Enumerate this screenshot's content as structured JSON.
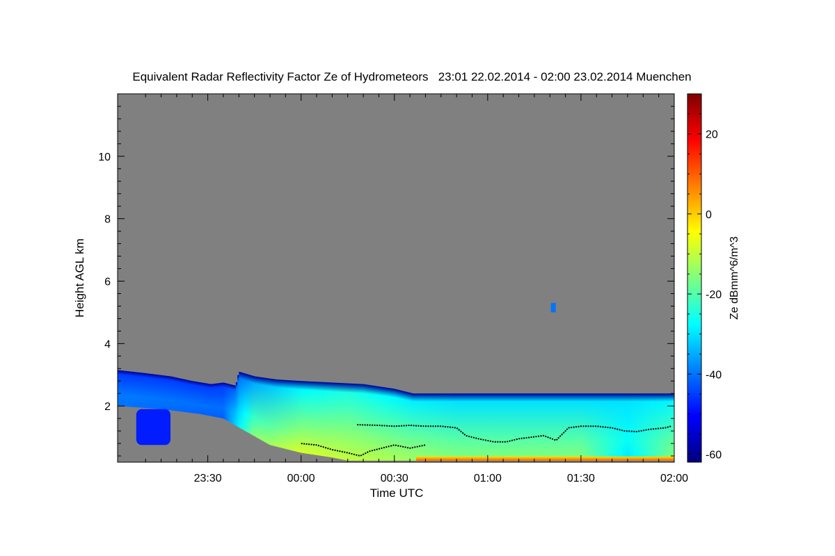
{
  "chart_data": {
    "type": "heatmap",
    "title": "Equivalent Radar Reflectivity Factor Ze of Hydrometeors   23:01 22.02.2014 - 02:00 23.02.2014 Muenchen",
    "xlabel": "Time UTC",
    "ylabel": "Height AGL km",
    "xlim_minutes": [
      -59,
      120
    ],
    "ylim_km": [
      0.2,
      12
    ],
    "x_ticks": [
      {
        "minutes": -30,
        "label": "23:30"
      },
      {
        "minutes": 0,
        "label": "00:00"
      },
      {
        "minutes": 30,
        "label": "00:30"
      },
      {
        "minutes": 60,
        "label": "01:00"
      },
      {
        "minutes": 90,
        "label": "01:30"
      },
      {
        "minutes": 120,
        "label": "02:00"
      }
    ],
    "y_ticks": [
      {
        "value": 2,
        "label": "2"
      },
      {
        "value": 4,
        "label": "4"
      },
      {
        "value": 6,
        "label": "6"
      },
      {
        "value": 8,
        "label": "8"
      },
      {
        "value": 10,
        "label": "10"
      }
    ],
    "colorbar": {
      "label": "Ze dBmm^6/m^3",
      "range": [
        -62,
        30
      ],
      "ticks": [
        {
          "value": 20,
          "label": "20"
        },
        {
          "value": 0,
          "label": "0"
        },
        {
          "value": -20,
          "label": "-20"
        },
        {
          "value": -40,
          "label": "-40"
        },
        {
          "value": -60,
          "label": "-60"
        }
      ],
      "colormap": [
        "#00007f",
        "#0000ff",
        "#007fff",
        "#00ffff",
        "#7fff7f",
        "#ffff00",
        "#ff7f00",
        "#ff0000",
        "#7f0000"
      ]
    },
    "cloud_top_km": [
      {
        "t": -59,
        "h": 3.15
      },
      {
        "t": -50,
        "h": 3.05
      },
      {
        "t": -42,
        "h": 2.95
      },
      {
        "t": -35,
        "h": 2.8
      },
      {
        "t": -29,
        "h": 2.7
      },
      {
        "t": -25,
        "h": 2.75
      },
      {
        "t": -21,
        "h": 2.65
      },
      {
        "t": -20,
        "h": 3.1
      },
      {
        "t": -15,
        "h": 2.95
      },
      {
        "t": -8,
        "h": 2.85
      },
      {
        "t": 0,
        "h": 2.8
      },
      {
        "t": 10,
        "h": 2.75
      },
      {
        "t": 20,
        "h": 2.7
      },
      {
        "t": 30,
        "h": 2.55
      },
      {
        "t": 36,
        "h": 2.4
      },
      {
        "t": 45,
        "h": 2.4
      },
      {
        "t": 60,
        "h": 2.4
      },
      {
        "t": 90,
        "h": 2.4
      },
      {
        "t": 120,
        "h": 2.4
      }
    ],
    "cloud_base_km": [
      {
        "t": -59,
        "h": 2.0
      },
      {
        "t": -45,
        "h": 1.9
      },
      {
        "t": -33,
        "h": 1.75
      },
      {
        "t": -25,
        "h": 1.6
      },
      {
        "t": -18,
        "h": 1.2
      },
      {
        "t": -10,
        "h": 0.75
      },
      {
        "t": 0,
        "h": 0.5
      },
      {
        "t": 10,
        "h": 0.35
      },
      {
        "t": 15,
        "h": 0.25
      },
      {
        "t": 120,
        "h": 0.25
      }
    ],
    "reflectivity_profile": [
      {
        "t": -59,
        "ze_top": -45,
        "ze_base": -40
      },
      {
        "t": -25,
        "ze_top": -45,
        "ze_base": -42
      },
      {
        "t": -15,
        "ze_top": -35,
        "ze_base": -15
      },
      {
        "t": 0,
        "ze_top": -28,
        "ze_base": -8
      },
      {
        "t": 15,
        "ze_top": -25,
        "ze_base": -10
      },
      {
        "t": 30,
        "ze_top": -28,
        "ze_base": -12
      },
      {
        "t": 50,
        "ze_top": -30,
        "ze_base": -15
      },
      {
        "t": 90,
        "ze_top": -30,
        "ze_base": -15
      },
      {
        "t": 105,
        "ze_top": -30,
        "ze_base": -30
      },
      {
        "t": 120,
        "ze_top": -28,
        "ze_base": -15
      }
    ],
    "lower_patch": {
      "t_start": -53,
      "t_end": -42,
      "h_top": 1.9,
      "h_bottom": 0.75,
      "ze": -48
    },
    "isolated_echo": {
      "t": 81,
      "h_top": 5.3,
      "h_bottom": 5.0,
      "ze": -40
    },
    "near_surface_band": {
      "t_start": 37,
      "t_end": 120,
      "h_top": 0.38,
      "h_bottom": 0.25,
      "ze": 10
    },
    "cloud_base_markers_km": [
      {
        "t": 0,
        "h": 0.8
      },
      {
        "t": 5,
        "h": 0.75
      },
      {
        "t": 10,
        "h": 0.6
      },
      {
        "t": 15,
        "h": 0.5
      },
      {
        "t": 19,
        "h": 0.4
      },
      {
        "t": 22,
        "h": 0.55
      },
      {
        "t": 26,
        "h": 0.65
      },
      {
        "t": 30,
        "h": 0.75
      },
      {
        "t": 35,
        "h": 0.65
      },
      {
        "t": 40,
        "h": 0.75
      }
    ],
    "mixed_layer_markers_km": [
      {
        "t": 18,
        "h": 1.4
      },
      {
        "t": 25,
        "h": 1.38
      },
      {
        "t": 30,
        "h": 1.35
      },
      {
        "t": 35,
        "h": 1.38
      },
      {
        "t": 40,
        "h": 1.35
      },
      {
        "t": 45,
        "h": 1.35
      },
      {
        "t": 50,
        "h": 1.3
      },
      {
        "t": 53,
        "h": 1.05
      },
      {
        "t": 57,
        "h": 0.95
      },
      {
        "t": 62,
        "h": 0.85
      },
      {
        "t": 66,
        "h": 0.85
      },
      {
        "t": 70,
        "h": 0.95
      },
      {
        "t": 74,
        "h": 1.0
      },
      {
        "t": 78,
        "h": 1.05
      },
      {
        "t": 82,
        "h": 0.9
      },
      {
        "t": 86,
        "h": 1.3
      },
      {
        "t": 90,
        "h": 1.35
      },
      {
        "t": 95,
        "h": 1.35
      },
      {
        "t": 100,
        "h": 1.3
      },
      {
        "t": 104,
        "h": 1.2
      },
      {
        "t": 108,
        "h": 1.18
      },
      {
        "t": 112,
        "h": 1.25
      },
      {
        "t": 117,
        "h": 1.3
      },
      {
        "t": 119,
        "h": 1.35
      }
    ],
    "background_color": "#808080"
  }
}
